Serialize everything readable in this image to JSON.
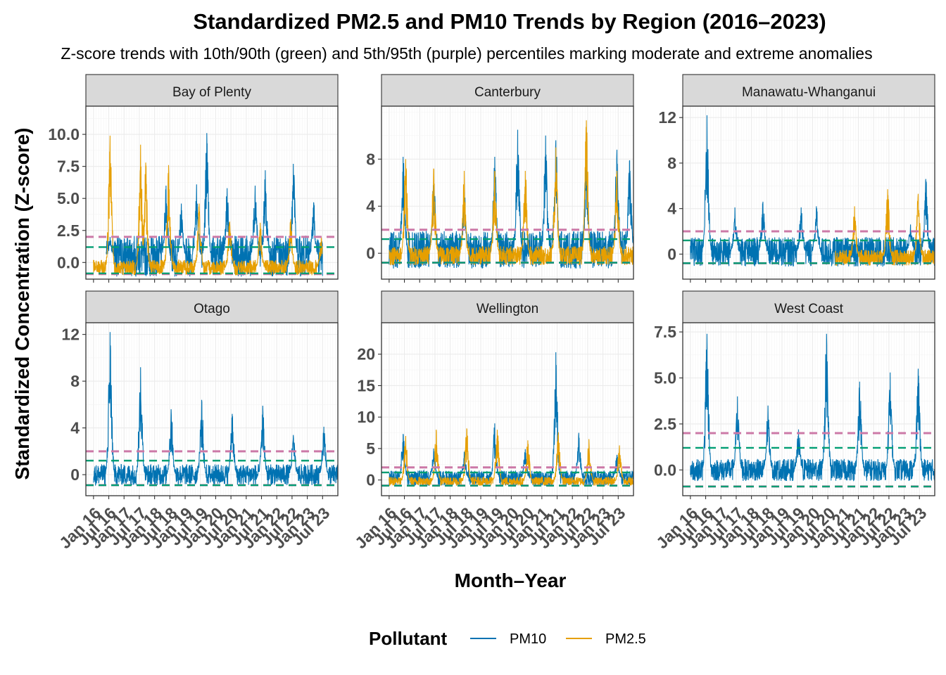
{
  "chart_data": {
    "type": "line",
    "title": "Standardized PM2.5 and PM10 Trends by Region (2016–2023)",
    "subtitle": "Z-score trends with 10th/90th (green) and 5th/95th (purple) percentiles marking moderate and extreme anomalies",
    "xlabel": "Month–Year",
    "ylabel": "Standardized Concentration (Z-score)",
    "x_tick_labels": [
      "Jan 16",
      "Jul 16",
      "Jan 17",
      "Jul 17",
      "Jan 18",
      "Jul 18",
      "Jan 19",
      "Jul 19",
      "Jan 20",
      "Jul 20",
      "Jan 21",
      "Jul 21",
      "Jan 22",
      "Jul 22",
      "Jan 23",
      "Jul 23"
    ],
    "xlim": [
      "2015-10",
      "2024-01"
    ],
    "grid": true,
    "legend": {
      "title": "Pollutant",
      "position": "bottom",
      "entries": [
        {
          "name": "PM10",
          "color": "#0072B2"
        },
        {
          "name": "PM2.5",
          "color": "#E69F00"
        }
      ]
    },
    "reference_lines": [
      {
        "percentile": "10th/90th",
        "color": "#009E73",
        "style": "dashed"
      },
      {
        "percentile": "5th/95th",
        "color": "#CC79A7",
        "style": "dashed"
      }
    ],
    "panels": [
      {
        "region": "Bay of Plenty",
        "ylim": [
          -1.3,
          12.2
        ],
        "yticks": [
          "0.0",
          "2.5",
          "5.0",
          "7.5",
          "10.0"
        ],
        "ytick_values": [
          0,
          2.5,
          5,
          7.5,
          10
        ],
        "p90": 1.2,
        "p10": -0.85,
        "p95": 2.0,
        "p05": -0.9,
        "series": [
          {
            "name": "PM10",
            "start": "2016-06",
            "end": "2023-06",
            "baseline": 0.5,
            "spread": 1.6,
            "peaks": [
              {
                "x": "2016-07",
                "y": 2.0
              },
              {
                "x": "2018-05",
                "y": 6.0
              },
              {
                "x": "2018-11",
                "y": 4.6
              },
              {
                "x": "2019-05",
                "y": 6.1
              },
              {
                "x": "2019-09",
                "y": 10.1
              },
              {
                "x": "2020-05",
                "y": 5.8
              },
              {
                "x": "2021-04",
                "y": 6.0
              },
              {
                "x": "2021-08",
                "y": 7.2
              },
              {
                "x": "2022-07",
                "y": 7.7
              },
              {
                "x": "2023-03",
                "y": 4.7
              }
            ]
          },
          {
            "name": "PM2.5",
            "start": "2016-01",
            "end": "2023-06",
            "baseline": -0.4,
            "spread": 0.6,
            "peaks": [
              {
                "x": "2016-07",
                "y": 9.9
              },
              {
                "x": "2017-07",
                "y": 9.2
              },
              {
                "x": "2017-09",
                "y": 7.8
              },
              {
                "x": "2018-06",
                "y": 7.6
              },
              {
                "x": "2019-06",
                "y": 4.6
              },
              {
                "x": "2020-06",
                "y": 3.2
              },
              {
                "x": "2021-06",
                "y": 3.1
              },
              {
                "x": "2022-06",
                "y": 3.4
              },
              {
                "x": "2023-06",
                "y": 2.0
              }
            ]
          }
        ]
      },
      {
        "region": "Canterbury",
        "ylim": [
          -2.2,
          12.5
        ],
        "yticks": [
          "0",
          "4",
          "8"
        ],
        "ytick_values": [
          0,
          4,
          8
        ],
        "p90": 1.2,
        "p10": -0.8,
        "p95": 2.0,
        "p05": -0.8,
        "series": [
          {
            "name": "PM10",
            "start": "2016-01",
            "end": "2023-12",
            "baseline": 0.3,
            "spread": 1.6,
            "peaks": [
              {
                "x": "2016-06",
                "y": 8.2
              },
              {
                "x": "2017-06",
                "y": 7.0
              },
              {
                "x": "2018-06",
                "y": 5.3
              },
              {
                "x": "2019-06",
                "y": 8.2
              },
              {
                "x": "2020-03",
                "y": 10.5
              },
              {
                "x": "2021-02",
                "y": 10.0
              },
              {
                "x": "2021-06",
                "y": 9.6
              },
              {
                "x": "2022-06",
                "y": 9.0
              },
              {
                "x": "2023-06",
                "y": 8.8
              },
              {
                "x": "2023-11",
                "y": 7.9
              }
            ]
          },
          {
            "name": "PM2.5",
            "start": "2016-01",
            "end": "2023-12",
            "baseline": -0.2,
            "spread": 0.8,
            "peaks": [
              {
                "x": "2016-07",
                "y": 8.0
              },
              {
                "x": "2017-06",
                "y": 7.2
              },
              {
                "x": "2018-06",
                "y": 7.0
              },
              {
                "x": "2019-06",
                "y": 7.0
              },
              {
                "x": "2020-06",
                "y": 7.0
              },
              {
                "x": "2021-06",
                "y": 9.0
              },
              {
                "x": "2022-06",
                "y": 11.3
              },
              {
                "x": "2023-06",
                "y": 7.0
              }
            ]
          }
        ]
      },
      {
        "region": "Manawatu-Whanganui",
        "ylim": [
          -2.2,
          13.0
        ],
        "yticks": [
          "0",
          "4",
          "8",
          "12"
        ],
        "ytick_values": [
          0,
          4,
          8,
          12
        ],
        "p90": 1.2,
        "p10": -0.8,
        "p95": 2.0,
        "p05": -0.8,
        "series": [
          {
            "name": "PM10",
            "start": "2016-01",
            "end": "2023-12",
            "baseline": 0.2,
            "spread": 1.3,
            "peaks": [
              {
                "x": "2016-07",
                "y": 12.2
              },
              {
                "x": "2017-06",
                "y": 4.1
              },
              {
                "x": "2018-05",
                "y": 4.6
              },
              {
                "x": "2019-08",
                "y": 4.1
              },
              {
                "x": "2020-02",
                "y": 4.2
              },
              {
                "x": "2023-03",
                "y": 2.6
              },
              {
                "x": "2023-09",
                "y": 6.6
              }
            ]
          },
          {
            "name": "PM2.5",
            "start": "2020-10",
            "end": "2023-12",
            "baseline": -0.3,
            "spread": 0.7,
            "peaks": [
              {
                "x": "2021-05",
                "y": 4.2
              },
              {
                "x": "2022-06",
                "y": 5.7
              },
              {
                "x": "2023-06",
                "y": 5.3
              }
            ]
          }
        ]
      },
      {
        "region": "Otago",
        "ylim": [
          -1.8,
          13.0
        ],
        "yticks": [
          "0",
          "4",
          "8",
          "12"
        ],
        "ytick_values": [
          0,
          4,
          8,
          12
        ],
        "p90": 1.2,
        "p10": -0.9,
        "p95": 2.0,
        "p05": -0.9,
        "series": [
          {
            "name": "PM10",
            "start": "2016-01",
            "end": "2023-12",
            "baseline": 0.0,
            "spread": 0.9,
            "peaks": [
              {
                "x": "2016-07",
                "y": 12.2
              },
              {
                "x": "2017-07",
                "y": 9.2
              },
              {
                "x": "2018-07",
                "y": 5.6
              },
              {
                "x": "2019-07",
                "y": 6.4
              },
              {
                "x": "2020-07",
                "y": 5.2
              },
              {
                "x": "2021-07",
                "y": 5.9
              },
              {
                "x": "2022-07",
                "y": 3.4
              },
              {
                "x": "2023-07",
                "y": 4.1
              }
            ]
          }
        ]
      },
      {
        "region": "Wellington",
        "ylim": [
          -2.5,
          25.0
        ],
        "yticks": [
          "0",
          "5",
          "10",
          "15",
          "20"
        ],
        "ytick_values": [
          0,
          5,
          10,
          15,
          20
        ],
        "p90": 1.2,
        "p10": -0.9,
        "p95": 2.0,
        "p05": -0.9,
        "series": [
          {
            "name": "PM10",
            "start": "2016-01",
            "end": "2023-12",
            "baseline": 0.3,
            "spread": 1.2,
            "peaks": [
              {
                "x": "2016-06",
                "y": 7.3
              },
              {
                "x": "2017-06",
                "y": 5.0
              },
              {
                "x": "2018-06",
                "y": 4.5
              },
              {
                "x": "2019-06",
                "y": 9.0
              },
              {
                "x": "2020-06",
                "y": 4.9
              },
              {
                "x": "2021-06",
                "y": 20.3
              },
              {
                "x": "2022-03",
                "y": 7.5
              },
              {
                "x": "2023-06",
                "y": 4.0
              }
            ]
          },
          {
            "name": "PM2.5",
            "start": "2016-01",
            "end": "2023-12",
            "baseline": -0.2,
            "spread": 0.7,
            "peaks": [
              {
                "x": "2016-07",
                "y": 7.0
              },
              {
                "x": "2017-07",
                "y": 8.0
              },
              {
                "x": "2018-07",
                "y": 8.2
              },
              {
                "x": "2019-07",
                "y": 8.0
              },
              {
                "x": "2020-07",
                "y": 6.3
              },
              {
                "x": "2021-07",
                "y": 7.6
              },
              {
                "x": "2022-07",
                "y": 6.5
              },
              {
                "x": "2023-07",
                "y": 5.5
              }
            ]
          }
        ]
      },
      {
        "region": "West Coast",
        "ylim": [
          -1.4,
          8.0
        ],
        "yticks": [
          "0.0",
          "2.5",
          "5.0",
          "7.5"
        ],
        "ytick_values": [
          0,
          2.5,
          5,
          7.5
        ],
        "p90": 1.2,
        "p10": -0.9,
        "p95": 2.0,
        "p05": -0.9,
        "series": [
          {
            "name": "PM10",
            "start": "2016-01",
            "end": "2023-12",
            "baseline": 0.0,
            "spread": 0.6,
            "peaks": [
              {
                "x": "2016-07",
                "y": 7.4
              },
              {
                "x": "2017-07",
                "y": 4.0
              },
              {
                "x": "2018-07",
                "y": 3.5
              },
              {
                "x": "2019-07",
                "y": 2.2
              },
              {
                "x": "2020-06",
                "y": 7.4
              },
              {
                "x": "2021-07",
                "y": 4.8
              },
              {
                "x": "2022-07",
                "y": 5.3
              },
              {
                "x": "2023-06",
                "y": 5.5
              }
            ]
          }
        ]
      }
    ]
  }
}
